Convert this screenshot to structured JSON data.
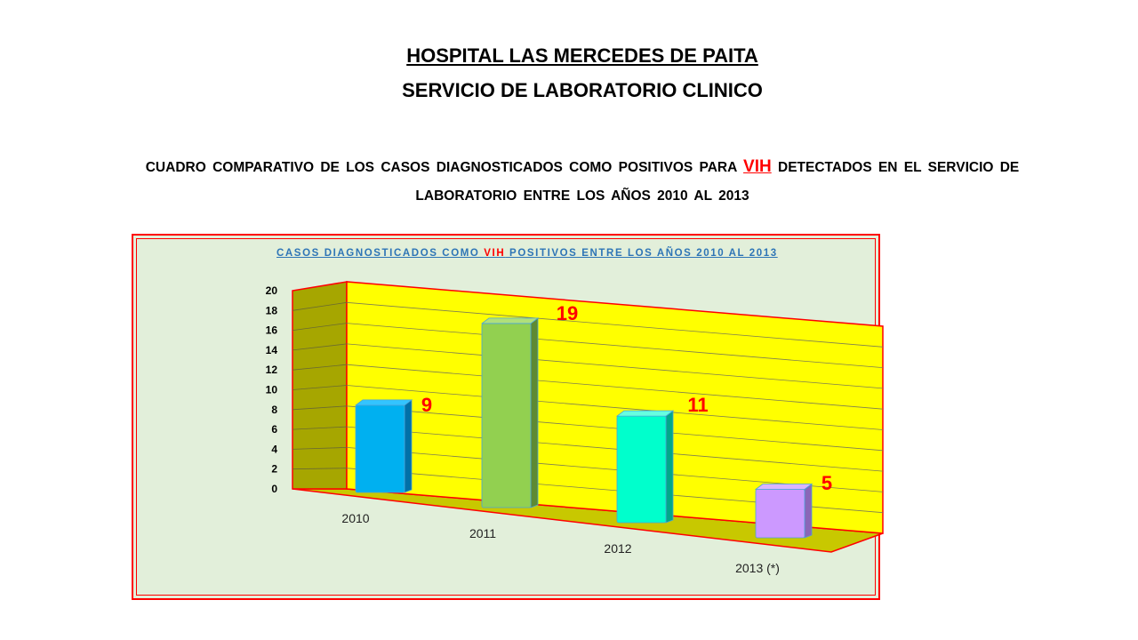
{
  "header": {
    "line1": "HOSPITAL LAS  MERCEDES DE PAITA",
    "line2": "SERVICIO DE LABORATORIO CLINICO"
  },
  "subtitle": {
    "part1": "CUADRO COMPARATIVO DE LOS CASOS DIAGNOSTICADOS COMO POSITIVOS PARA ",
    "highlight": "VIH",
    "part2": " DETECTADOS EN EL SERVICIO DE LABORATORIO ENTRE LOS AÑOS 2010 AL 2013"
  },
  "chart_data": {
    "type": "bar",
    "title_prefix": "CASOS DIAGNOSTICADOS COMO ",
    "title_highlight": "VIH",
    "title_suffix": " POSITIVOS ENTRE LOS AÑOS 2010 AL 2013",
    "categories": [
      "2010",
      "2011",
      "2012",
      "2013 (*)"
    ],
    "values": [
      9,
      19,
      11,
      5
    ],
    "data_labels": [
      "9",
      "19",
      "11",
      "5"
    ],
    "ylim": [
      0,
      20
    ],
    "yticks": [
      0,
      2,
      4,
      6,
      8,
      10,
      12,
      14,
      16,
      18,
      20
    ],
    "grid": true,
    "legend": "none",
    "colors": {
      "wall": "#ffff00",
      "side_wall": "#a6a600",
      "floor": "#c8c800",
      "frame": "#ff0000",
      "bars": [
        {
          "front": "#00b0f0",
          "side": "#0070a8",
          "top": "#33c4ff"
        },
        {
          "front": "#92d050",
          "side": "#5e8a32",
          "top": "#b0e07a"
        },
        {
          "front": "#00ffcc",
          "side": "#00a88a",
          "top": "#66ffe0"
        },
        {
          "front": "#cc99ff",
          "side": "#8a66b8",
          "top": "#dab5ff"
        }
      ],
      "data_label": "#ff0000"
    }
  }
}
